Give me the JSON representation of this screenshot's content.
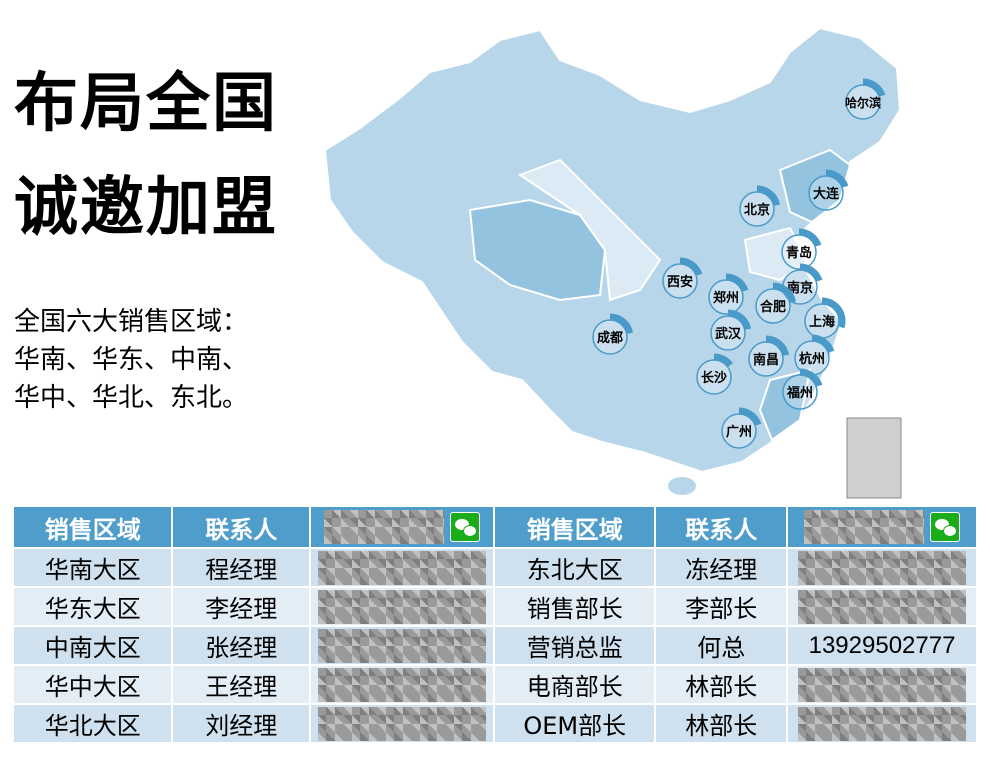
{
  "headline": {
    "line1": "布局全国",
    "line2": "诚邀加盟"
  },
  "description": {
    "line1": "全国六大销售区域：",
    "line2": "华南、华东、中南、",
    "line3": "华中、华北、东北。"
  },
  "colors": {
    "header": "#4f9dcb",
    "map_light": "#b8d6ea",
    "map_mid": "#93c3df",
    "map_pale": "#dbeaf4",
    "marker": "#4a9ac9"
  },
  "map": {
    "cities": [
      {
        "name": "哈尔滨",
        "arc": 0.2
      },
      {
        "name": "大连",
        "arc": 0.2
      },
      {
        "name": "北京",
        "arc": 0.22
      },
      {
        "name": "青岛",
        "arc": 0.2
      },
      {
        "name": "西安",
        "arc": 0.2
      },
      {
        "name": "郑州",
        "arc": 0.2
      },
      {
        "name": "南京",
        "arc": 0.2
      },
      {
        "name": "合肥",
        "arc": 0.22
      },
      {
        "name": "上海",
        "arc": 0.3
      },
      {
        "name": "成都",
        "arc": 0.22
      },
      {
        "name": "武汉",
        "arc": 0.22
      },
      {
        "name": "南昌",
        "arc": 0.22
      },
      {
        "name": "杭州",
        "arc": 0.2
      },
      {
        "name": "长沙",
        "arc": 0.15
      },
      {
        "name": "福州",
        "arc": 0.2
      },
      {
        "name": "广州",
        "arc": 0.2
      }
    ]
  },
  "table": {
    "headers": [
      "销售区域",
      "联系人",
      "",
      "销售区域",
      "联系人",
      ""
    ],
    "header_icon": "wechat-icon",
    "rows": [
      {
        "region_a": "华南大区",
        "contact_a": "程经理",
        "region_b": "东北大区",
        "contact_b": "冻经理",
        "phone_b": ""
      },
      {
        "region_a": "华东大区",
        "contact_a": "李经理",
        "region_b": "销售部长",
        "contact_b": "李部长",
        "phone_b": ""
      },
      {
        "region_a": "中南大区",
        "contact_a": "张经理",
        "region_b": "营销总监",
        "contact_b": "何总",
        "phone_b": "13929502777"
      },
      {
        "region_a": "华中大区",
        "contact_a": "王经理",
        "region_b": "电商部长",
        "contact_b": "林部长",
        "phone_b": ""
      },
      {
        "region_a": "华北大区",
        "contact_a": "刘经理",
        "region_b": "OEM部长",
        "contact_b": "林部长",
        "phone_b": ""
      }
    ]
  }
}
